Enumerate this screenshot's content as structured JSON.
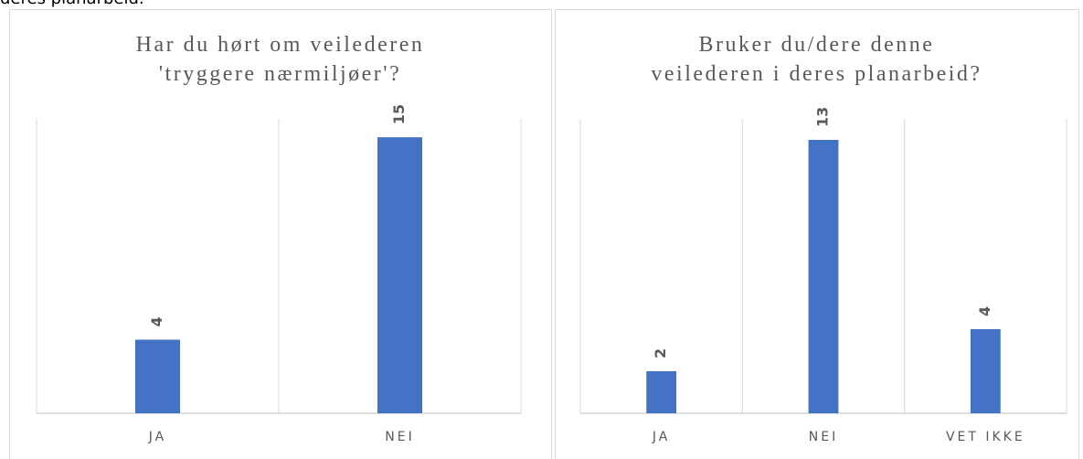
{
  "caption": "deres planarbeid.",
  "chart_data": [
    {
      "type": "bar",
      "title": [
        "Har du hørt om veilederen",
        "'tryggere nærmiljøer'?"
      ],
      "categories": [
        "JA",
        "NEI"
      ],
      "values": [
        4,
        15
      ],
      "color": "#4472c4",
      "ylim": [
        0,
        16
      ]
    },
    {
      "type": "bar",
      "title": [
        "Bruker du/dere denne",
        "veilederen i deres planarbeid?"
      ],
      "categories": [
        "JA",
        "NEI",
        "VET IKKE"
      ],
      "values": [
        2,
        13,
        4
      ],
      "color": "#4472c4",
      "ylim": [
        0,
        14
      ]
    }
  ]
}
